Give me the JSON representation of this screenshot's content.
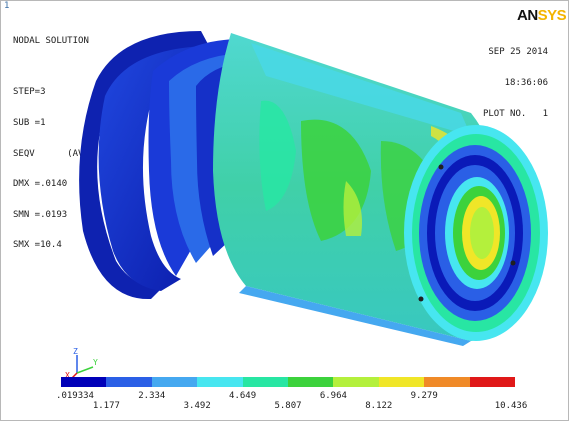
{
  "window": {
    "number": "1"
  },
  "logo": {
    "part1": "AN",
    "part2": "SYS"
  },
  "info": {
    "lines": [
      "NODAL SOLUTION",
      "",
      "STEP=3",
      "SUB =1",
      "SEQV      (AVG)",
      "DMX =.0140",
      "SMN =.0193",
      "SMX =10.4"
    ]
  },
  "plot_info": {
    "date": "SEP 25 2014",
    "time": "18:36:06",
    "plot_no": "PLOT NO.   1"
  },
  "triad": {
    "axes": [
      "Z",
      "Y",
      "X"
    ]
  },
  "legend": {
    "labels": [
      ".019334",
      "1.177",
      "2.334",
      "3.492",
      "4.649",
      "5.807",
      "6.964",
      "8.122",
      "9.279",
      "10.436"
    ],
    "colors": [
      "#0000b8",
      "#2a5fe6",
      "#45a8f0",
      "#47e6f0",
      "#28e6a3",
      "#3cd23c",
      "#b4f03c",
      "#f0e628",
      "#f08a28",
      "#e01818"
    ]
  }
}
